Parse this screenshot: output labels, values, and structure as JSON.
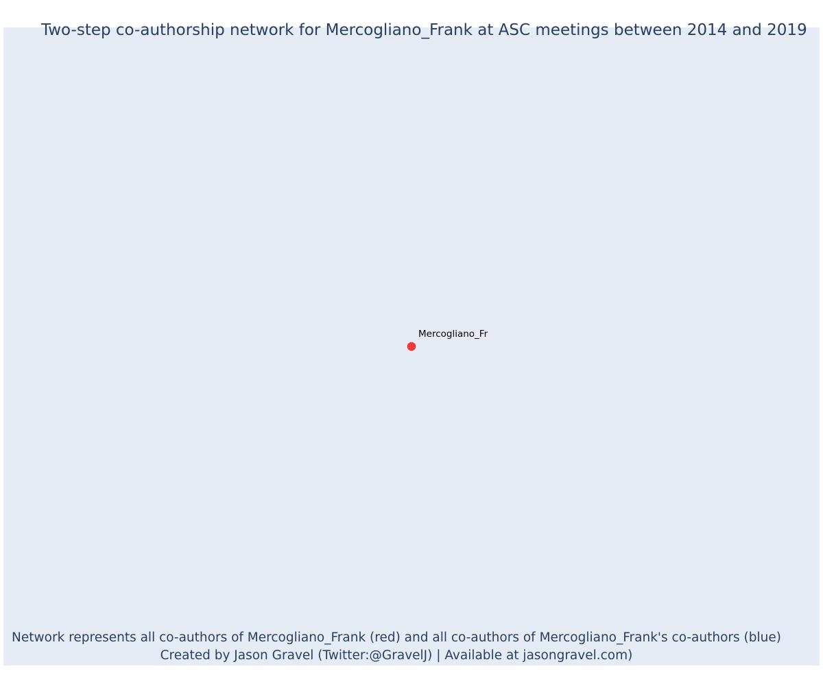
{
  "title": "Two-step co-authorship network for Mercogliano_Frank at ASC meetings between 2014 and 2019",
  "network": {
    "nodes": [
      {
        "id": "Mercogliano_Frank",
        "label": "Mercogliano_Fr",
        "role": "focal",
        "color": "#ef3b3b"
      }
    ],
    "edges": []
  },
  "caption": {
    "line1": "Network represents all co-authors of Mercogliano_Frank (red) and all co-authors of Mercogliano_Frank's co-authors (blue)",
    "line2": "Created by Jason Gravel (Twitter:@GravelJ) | Available at jasongravel.com)"
  },
  "colors": {
    "plot_background": "#e5ecf6",
    "text": "#2a3f5f",
    "focal_node": "#ef3b3b",
    "coauthor_node": "#1f77b4"
  }
}
